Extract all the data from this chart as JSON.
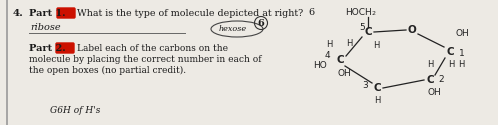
{
  "bg_color": "#edeae4",
  "text_color": "#1a1a1a",
  "molecule_color": "#222222",
  "red_box_color": "#cc1100",
  "line_color": "#666666",
  "part1_text": "Part 1.",
  "part1_question": "What is the type of molecule depicted at right?",
  "score": "6",
  "answer_text": "ribose",
  "circle_text": "hexose",
  "part2_text": "Part 2.",
  "part2_line1": "Label each of the carbons on the",
  "part2_line2": "molecule by placing the correct number in each of",
  "part2_line3": "the open boxes (no partial credit).",
  "bottom_text": "G6H of H's",
  "qnum": "4."
}
